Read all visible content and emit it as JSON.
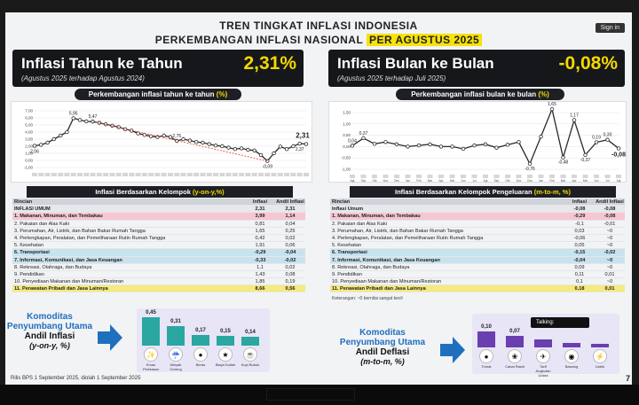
{
  "header": {
    "title_line1": "TREN TINGKAT INFLASI INDONESIA",
    "title_line2_prefix": "PERKEMBANGAN INFLASI NASIONAL",
    "title_line2_highlight": "PER AGUSTUS 2025",
    "signin_label": "Sign in"
  },
  "yoy": {
    "title": "Inflasi Tahun ke Tahun",
    "subtitle": "(Agustus 2025 terhadap Agustus 2024)",
    "value": "2,31%",
    "chart_pill_prefix": "Perkembangan inflasi tahun ke tahun",
    "chart_pill_unit": "(%)"
  },
  "mtm": {
    "title": "Inflasi Bulan ke Bulan",
    "subtitle": "(Agustus 2025 terhadap Juli 2025)",
    "value": "-0,08%",
    "chart_pill_prefix": "Perkembangan inflasi bulan ke bulan",
    "chart_pill_unit": "(%)"
  },
  "chart_data": [
    {
      "type": "line",
      "title": "Perkembangan inflasi tahun ke tahun (%)",
      "ylim": [
        -1.0,
        7.0
      ],
      "yticks": [
        "7,00",
        "6,00",
        "5,00",
        "4,00",
        "3,00",
        "2,00",
        "1,00",
        "0,00",
        "-1,00"
      ],
      "series": [
        {
          "values": [
            2.06,
            2.2,
            2.5,
            3.0,
            3.5,
            4.0,
            5.95,
            5.7,
            5.5,
            5.47,
            5.3,
            5.1,
            4.9,
            4.7,
            4.4,
            4.2,
            3.8,
            3.6,
            3.4,
            3.3,
            3.5,
            3.3,
            2.75,
            3.0,
            2.8,
            2.6,
            2.5,
            2.3,
            2.1,
            2.0,
            1.8,
            1.6,
            1.7,
            1.5,
            1.4,
            0.76,
            -0.09,
            1.0,
            1.95,
            1.6,
            2.0,
            2.37,
            2.31
          ]
        }
      ],
      "annotations": [
        "2,06",
        "5,95",
        "5,47",
        "2,75",
        "-0,09",
        "2,37",
        "2,31"
      ]
    },
    {
      "type": "line",
      "title": "Perkembangan inflasi bulan ke bulan (%)",
      "ylim": [
        -1.0,
        1.5
      ],
      "yticks": [
        "1,50",
        "1,00",
        "0,50",
        "0,00",
        "-0,50",
        "-1,00"
      ],
      "x_labels": [
        "Agt",
        "Sep",
        "Okt",
        "Nov",
        "Des",
        "Jan",
        "Feb",
        "Mar",
        "Apr",
        "Mei",
        "Jun",
        "Jul",
        "Agt",
        "Sep",
        "Okt",
        "Nov",
        "Des",
        "Jan",
        "Feb",
        "Mar",
        "Apr",
        "Mei",
        "Jun",
        "Jul",
        "Agt"
      ],
      "series": [
        {
          "values": [
            0.04,
            0.37,
            0.12,
            0.2,
            0.1,
            0.0,
            0.05,
            0.1,
            0.0,
            0.0,
            -0.1,
            0.05,
            0.1,
            -0.05,
            0.08,
            0.2,
            -0.76,
            0.44,
            1.65,
            -0.48,
            1.17,
            -0.37,
            0.19,
            0.3,
            -0.08
          ]
        }
      ],
      "annotations": [
        "0,04",
        "0,37",
        "-0,76",
        "1,65",
        "-0,48",
        "1,17",
        "-0,37",
        "0,19",
        "0,30",
        "-0,08"
      ]
    }
  ],
  "yoy_table": {
    "title_prefix": "Inflasi Berdasarkan Kelompok",
    "title_unit": "(y-on-y,%)",
    "headers": [
      "Rincian",
      "Inflasi",
      "Andil Inflasi"
    ],
    "umum": [
      "INFLASI UMUM",
      "2,31",
      "2,31"
    ],
    "rows": [
      [
        "1.  Makanan, Minuman, dan Tembakau",
        "3,99",
        "1,14"
      ],
      [
        "2.  Pakaian dan Alas Kaki",
        "0,81",
        "0,04"
      ],
      [
        "3.  Perumahan, Air, Listrik, dan Bahan Bakar Rumah Tangga",
        "1,65",
        "0,25"
      ],
      [
        "4.  Perlengkapan, Peralatan, dan Pemeliharaan Rutin Rumah Tangga",
        "0,42",
        "0,02"
      ],
      [
        "5.  Kesehatan",
        "1,91",
        "0,06"
      ],
      [
        "6.  Transportasi",
        "-0,29",
        "-0,04"
      ],
      [
        "7.  Informasi, Komunikasi, dan Jasa Keuangan",
        "-0,33",
        "-0,02"
      ],
      [
        "8.  Rekreasi, Olahraga, dan Budaya",
        "1,1",
        "0,02"
      ],
      [
        "9.  Pendidikan",
        "1,43",
        "0,08"
      ],
      [
        "10. Penyediaan Makanan dan Minuman/Restoran",
        "1,85",
        "0,19"
      ],
      [
        "11. Perawatan Pribadi dan Jasa Lainnya",
        "8,66",
        "0,56"
      ]
    ]
  },
  "mtm_table": {
    "title_prefix": "Inflasi Berdasarkan Kelompok Pengeluaran",
    "title_unit": "(m-to-m, %)",
    "headers": [
      "Rincian",
      "Inflasi",
      "Andil Inflasi"
    ],
    "umum": [
      "Inflasi Umum",
      "-0,08",
      "-0,08"
    ],
    "rows": [
      [
        "1.  Makanan, Minuman, dan Tembakau",
        "-0,29",
        "-0,08"
      ],
      [
        "2.  Pakaian dan Alas Kaki",
        "-0,1",
        "-0,01"
      ],
      [
        "3.  Perumahan, Air, Listrik, dan Bahan Bakar Rumah Tangga",
        "0,03",
        "~0"
      ],
      [
        "4.  Perlengkapan, Peralatan, dan Pemeliharaan Rutin Rumah Tangga",
        "-0,06",
        "~0"
      ],
      [
        "5.  Kesehatan",
        "0,05",
        "~0"
      ],
      [
        "6.  Transportasi",
        "-0,15",
        "-0,02"
      ],
      [
        "7.  Informasi, Komunikasi, dan Jasa Keuangan",
        "-0,04",
        "~0"
      ],
      [
        "8.  Rekreasi, Olahraga, dan Budaya",
        "0,09",
        "~0"
      ],
      [
        "9.  Pendidikan",
        "0,11",
        "0,01"
      ],
      [
        "10. Penyediaan Makanan dan Minuman/Restoran",
        "0,1",
        "~0"
      ],
      [
        "11. Perawatan Pribadi dan Jasa Lainnya",
        "0,18",
        "0,01"
      ]
    ],
    "note": "Keterangan: ~0 bernilai sangat kecil"
  },
  "komoditas_inflasi": {
    "line1": "Komoditas",
    "line2": "Penyumbang Utama",
    "line3": "Andil Inflasi",
    "line4": "(y-on-y, %)",
    "bars": [
      {
        "value": "0,45",
        "num": 0.45,
        "label": "Emas Perhiasan",
        "icon": "✨"
      },
      {
        "value": "0,31",
        "num": 0.31,
        "label": "Minyak Goreng",
        "icon": "☔"
      },
      {
        "value": "0,17",
        "num": 0.17,
        "label": "Beras",
        "icon": "●"
      },
      {
        "value": "0,15",
        "num": 0.15,
        "label": "Biaya Kuliah",
        "icon": "★"
      },
      {
        "value": "0,14",
        "num": 0.14,
        "label": "Kopi Bubuk",
        "icon": "☕"
      }
    ]
  },
  "komoditas_deflasi": {
    "line1": "Komoditas",
    "line2": "Penyumbang Utama",
    "line3": "Andil Deflasi",
    "line4": "(m-to-m, %)",
    "bars": [
      {
        "value": "0,10",
        "num": 0.1,
        "label": "Tomat",
        "icon": "●"
      },
      {
        "value": "0,07",
        "num": 0.07,
        "label": "Cabai Rawit",
        "icon": "❀"
      },
      {
        "value": "",
        "num": 0.05,
        "label": "Tarif Angkutan Udara",
        "icon": "✈"
      },
      {
        "value": "",
        "num": 0.03,
        "label": "Bawang",
        "icon": "◉"
      },
      {
        "value": "",
        "num": 0.02,
        "label": "Listrik",
        "icon": "⚡"
      }
    ],
    "tooltip": "Talking:"
  },
  "footer": {
    "source": "Rilis BPS 1 September 2025, diolah 1 September 2025",
    "page": "7"
  },
  "colors": {
    "accent_yellow": "#f5d800",
    "dark_banner": "#15171b",
    "line_color": "#2a2a2a",
    "bar_teal": "#2aa7a0",
    "bar_purple": "#6a3fb0",
    "komoditas_blue": "#1f6fbf"
  }
}
